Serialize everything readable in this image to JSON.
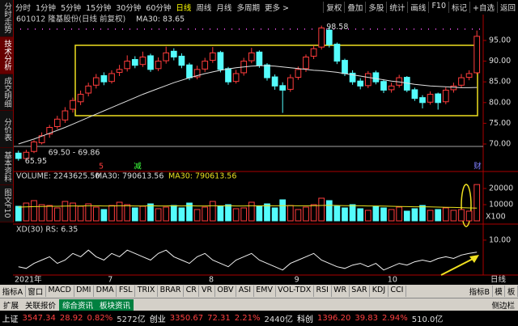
{
  "toolbar": {
    "periods": [
      "分时",
      "1分钟",
      "5分钟",
      "15分钟",
      "30分钟",
      "60分钟",
      "日线",
      "周线",
      "月线",
      "多周期",
      "更多 >"
    ],
    "active_period": 6,
    "tools": [
      "复权",
      "叠加",
      "多股",
      "统计",
      "画线",
      "F10",
      "标记",
      "+自选",
      "返回"
    ]
  },
  "sidebar": {
    "tabs": [
      "分时走势",
      "技术分析",
      "成交明细",
      "分价表",
      "基本资料",
      "图文F10"
    ],
    "active_tab": 1
  },
  "chart_data": [
    {
      "type": "candlestick",
      "title": "601012 隆基股份(日线 前复权)",
      "ma_label": "MA30: 83.65",
      "up_color": "#ff3c3c",
      "down_color": "#54fcfc",
      "ma_color": "#e0e0e0",
      "ylim": [
        63.36,
        101.25
      ],
      "yticks": [
        {
          "value": 95,
          "label": "95.00"
        },
        {
          "value": 90,
          "label": "90.00"
        },
        {
          "value": 85,
          "label": "85.00"
        },
        {
          "value": 80,
          "label": "80.00"
        },
        {
          "value": 75,
          "label": "75.00"
        },
        {
          "value": 70,
          "label": "70.00"
        }
      ],
      "categories": [
        "2021年",
        null,
        null,
        null,
        null,
        null,
        null,
        null,
        null,
        null,
        null,
        null,
        "7",
        null,
        null,
        null,
        null,
        null,
        null,
        null,
        null,
        null,
        null,
        null,
        null,
        "8",
        null,
        null,
        null,
        null,
        null,
        null,
        null,
        null,
        null,
        null,
        "9",
        null,
        null,
        null,
        null,
        null,
        null,
        null,
        null,
        null,
        null,
        null,
        "10",
        null,
        null,
        null,
        null,
        null,
        null,
        null,
        null,
        null,
        null,
        null
      ],
      "candles": [
        [
          67.8,
          68.4,
          65.95,
          66.5
        ],
        [
          66.5,
          68.6,
          66.2,
          68
        ],
        [
          68.2,
          70.9,
          67.8,
          70.5
        ],
        [
          70.3,
          72.8,
          69.9,
          72
        ],
        [
          72.4,
          74.6,
          71.5,
          74
        ],
        [
          74.2,
          76.8,
          73.6,
          76
        ],
        [
          75.8,
          78.9,
          75.1,
          78
        ],
        [
          78.4,
          81.2,
          77.6,
          80.5
        ],
        [
          80.2,
          82.9,
          79.4,
          82
        ],
        [
          82.3,
          84.8,
          81.5,
          84
        ],
        [
          84.2,
          86.9,
          83.4,
          86
        ],
        [
          86.5,
          87.3,
          84.2,
          85
        ],
        [
          85.1,
          87.8,
          84.6,
          87
        ],
        [
          87.3,
          89.1,
          86.4,
          88
        ],
        [
          88.2,
          91.4,
          87.5,
          90
        ],
        [
          90.4,
          91.2,
          88.3,
          89
        ],
        [
          89.2,
          92.3,
          88.6,
          91
        ],
        [
          91.3,
          91.8,
          87.4,
          88
        ],
        [
          88.2,
          90.9,
          87.6,
          90
        ],
        [
          90.1,
          93.5,
          89.4,
          92
        ],
        [
          92.4,
          93.1,
          90.2,
          91
        ],
        [
          91.2,
          91.9,
          88.3,
          89
        ],
        [
          89.1,
          89.6,
          85.4,
          86
        ],
        [
          86.2,
          88.9,
          85.6,
          88
        ],
        [
          88.1,
          90.8,
          87.4,
          90
        ],
        [
          90.2,
          93.4,
          89.6,
          92
        ],
        [
          92.1,
          92.5,
          87.3,
          88
        ],
        [
          88.2,
          88.6,
          84.3,
          85
        ],
        [
          85.1,
          87.9,
          84.6,
          87
        ],
        [
          87.2,
          90.8,
          86.5,
          90
        ],
        [
          90.1,
          93.2,
          89.5,
          92
        ],
        [
          92.2,
          92.6,
          88.4,
          89
        ],
        [
          89.1,
          89.5,
          85.3,
          86
        ],
        [
          86.2,
          86.8,
          83.1,
          84
        ],
        [
          84.1,
          84.9,
          77.5,
          83
        ],
        [
          83.2,
          86.8,
          82.6,
          86
        ],
        [
          86.1,
          88.7,
          85.5,
          88
        ],
        [
          88.2,
          91.6,
          87.4,
          91
        ],
        [
          91.2,
          93.8,
          90.5,
          93
        ],
        [
          93.4,
          98.58,
          92.8,
          98
        ],
        [
          97.5,
          98.2,
          93.3,
          94
        ],
        [
          94.1,
          94.5,
          89.3,
          90
        ],
        [
          90.2,
          90.6,
          86.4,
          87
        ],
        [
          87.1,
          87.8,
          84.3,
          85
        ],
        [
          85.2,
          85.9,
          83.2,
          84
        ],
        [
          84.1,
          87.6,
          83.5,
          87
        ],
        [
          87.2,
          87.7,
          84.4,
          85
        ],
        [
          85.1,
          85.5,
          82.3,
          83
        ],
        [
          83.1,
          84.8,
          82.4,
          84
        ],
        [
          84.2,
          86.7,
          83.6,
          86
        ],
        [
          86.1,
          86.4,
          82.5,
          83
        ],
        [
          83.1,
          83.6,
          80.4,
          81
        ],
        [
          81.2,
          81.8,
          78.6,
          80
        ],
        [
          80.1,
          82.7,
          79.5,
          82
        ],
        [
          82.1,
          82.4,
          78.3,
          80
        ],
        [
          80.2,
          83.7,
          79.6,
          83
        ],
        [
          83.1,
          84.8,
          82.4,
          84
        ],
        [
          84.2,
          86.9,
          83.5,
          86
        ],
        [
          86.1,
          87.8,
          85.4,
          87
        ],
        [
          87.2,
          97.4,
          86.8,
          96
        ]
      ],
      "ma30": [
        70,
        70.6,
        71.2,
        71.9,
        72.6,
        73.3,
        74,
        74.8,
        75.6,
        76.4,
        77.2,
        78,
        78.8,
        79.6,
        80.4,
        81.2,
        82,
        82.7,
        83.4,
        84.1,
        84.8,
        85.4,
        86,
        86.5,
        87,
        87.4,
        87.8,
        88.1,
        88.4,
        88.6,
        88.8,
        88.9,
        88.9,
        88.8,
        88.6,
        88.4,
        88.2,
        88,
        87.8,
        87.7,
        87.5,
        87.3,
        87,
        86.7,
        86.4,
        86.1,
        85.8,
        85.5,
        85.2,
        85,
        84.7,
        84.4,
        84.2,
        84,
        83.9,
        83.8,
        83.7,
        83.6,
        83.6,
        83.65
      ],
      "annotations": [
        "98.58",
        "69.50 - 69.86",
        "65.95"
      ],
      "markers": [
        "5",
        "减",
        "财"
      ]
    },
    {
      "type": "bar",
      "title": "VOLUME: 2243625.50",
      "ma_label": "MA30: 790613.56",
      "ma_label_2": "MA30: 790613.56",
      "unit_label": "X100",
      "ma_color": "#e8e020",
      "ylim": [
        0,
        28500
      ],
      "yticks": [
        20000,
        10000
      ],
      "values": [
        9000,
        11000,
        12500,
        10000,
        9500,
        8000,
        12000,
        11000,
        9000,
        10500,
        8500,
        7000,
        9500,
        11500,
        10000,
        8000,
        9000,
        10500,
        7500,
        8500,
        9500,
        8000,
        11000,
        7000,
        8500,
        12000,
        9000,
        10000,
        7500,
        8000,
        11500,
        9000,
        10500,
        8000,
        13000,
        9500,
        7000,
        8500,
        10000,
        14000,
        12500,
        9000,
        8000,
        10000,
        7500,
        6500,
        9000,
        8000,
        7000,
        8500,
        6000,
        7500,
        9500,
        6500,
        7000,
        8000,
        6500,
        7000,
        6000,
        22436.255
      ],
      "ma30": [
        8500,
        8600,
        8800,
        8900,
        9000,
        9000,
        9100,
        9200,
        9200,
        9300,
        9300,
        9200,
        9200,
        9300,
        9300,
        9200,
        9200,
        9300,
        9200,
        9200,
        9300,
        9200,
        9300,
        9200,
        9200,
        9300,
        9300,
        9300,
        9200,
        9200,
        9300,
        9300,
        9400,
        9300,
        9400,
        9400,
        9300,
        9300,
        9400,
        9500,
        9600,
        9500,
        9400,
        9400,
        9300,
        9200,
        9200,
        9100,
        9000,
        8900,
        8800,
        8700,
        8700,
        8600,
        8500,
        8400,
        8300,
        8200,
        8000,
        7906.1356
      ]
    },
    {
      "type": "line",
      "title": "XD(30) RS: 6.35",
      "color": "#f0f0f0",
      "ylim": [
        -0.5,
        14.1
      ],
      "yticks": [
        {
          "value": 10,
          "label": "10.00"
        }
      ],
      "values": [
        2,
        1.5,
        3,
        4,
        5,
        3,
        4,
        6,
        5,
        7,
        5,
        4,
        6,
        5,
        7,
        6,
        5,
        4,
        6,
        7,
        5,
        4,
        3,
        5,
        6,
        4,
        3,
        2,
        4,
        5,
        6,
        4,
        3,
        2,
        1,
        3,
        4,
        5,
        6,
        4,
        3,
        2,
        1.5,
        2.5,
        3,
        2,
        3,
        1,
        2,
        3,
        2.5,
        3.5,
        4,
        3.5,
        4.5,
        5,
        4.5,
        5.5,
        6,
        6.35
      ]
    }
  ],
  "axis_period": "日线",
  "indicator_tabs": [
    "指标A",
    "窗口",
    "MACD",
    "DMI",
    "DMA",
    "FSL",
    "TRIX",
    "BRAR",
    "CR",
    "VR",
    "OBV",
    "ASI",
    "EMV",
    "VOL-TDX",
    "RSI",
    "WR",
    "SAR",
    "KDJ",
    "CCI"
  ],
  "indicator_right": [
    "指标B",
    "模",
    "板"
  ],
  "info_tabs": [
    "扩展",
    "关联报价",
    "综合资讯",
    "板块资讯"
  ],
  "info_right": "侧边栏",
  "status": [
    {
      "name": "上证",
      "price": "3547.34",
      "change": "28.92",
      "pct": "0.82%",
      "amount": "5272亿"
    },
    {
      "name": "创业",
      "price": "3350.67",
      "change": "72.31",
      "pct": "2.21%",
      "amount": "2440亿"
    },
    {
      "name": "科创",
      "price": "1396.20",
      "change": "39.83",
      "pct": "2.94%",
      "amount": "510.0亿"
    }
  ]
}
